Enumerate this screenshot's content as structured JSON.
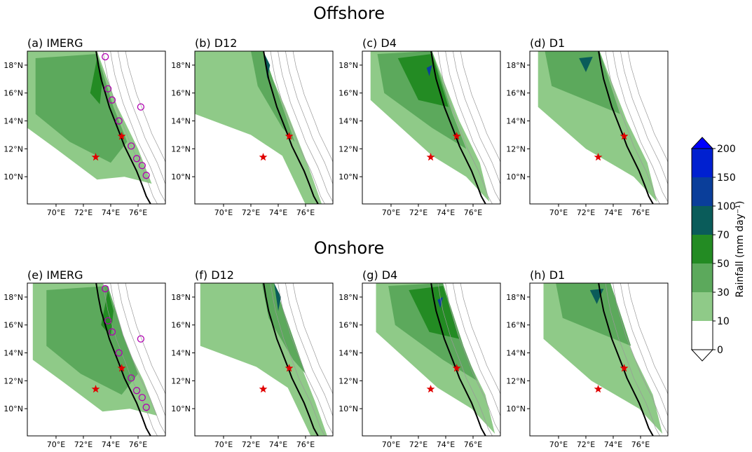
{
  "rows": [
    {
      "title": "Offshore",
      "panels": [
        {
          "label": "(a) IMERG"
        },
        {
          "label": "(b) D12"
        },
        {
          "label": "(c) D4"
        },
        {
          "label": "(d) D1"
        }
      ]
    },
    {
      "title": "Onshore",
      "panels": [
        {
          "label": "(e) IMERG"
        },
        {
          "label": "(f) D12"
        },
        {
          "label": "(g) D4"
        },
        {
          "label": "(h) D1"
        }
      ]
    }
  ],
  "axes": {
    "xticks": [
      "70°E",
      "72°E",
      "74°E",
      "76°E"
    ],
    "yticks": [
      "18°N",
      "16°N",
      "14°N",
      "12°N",
      "10°N"
    ]
  },
  "colorbar": {
    "label": "Rainfall (mm day⁻¹)",
    "levels": [
      0,
      10,
      30,
      50,
      70,
      100,
      150,
      200
    ],
    "colors": [
      "#ffffff",
      "#8fca88",
      "#5ca95c",
      "#238b23",
      "#0a5c5a",
      "#0a3e9a",
      "#0020d0"
    ],
    "under_color": "#ffffff",
    "over_color": "#0000ff"
  }
}
